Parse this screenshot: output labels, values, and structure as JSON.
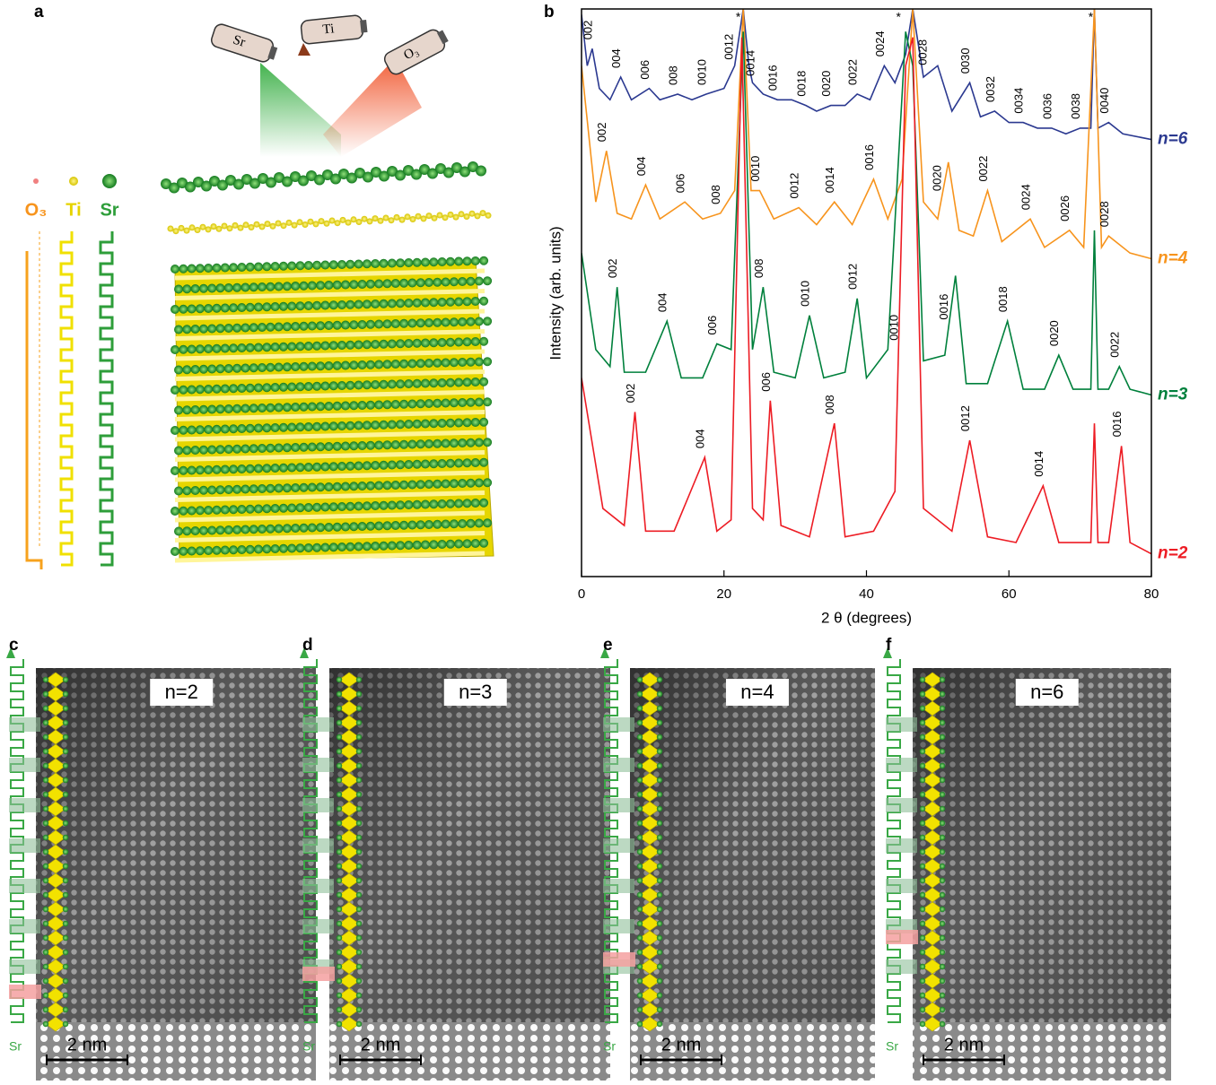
{
  "panel_a": {
    "label": "a",
    "sources": [
      "Sr",
      "Ti",
      "O₃"
    ],
    "legend": [
      "O₃",
      "Ti",
      "Sr"
    ]
  },
  "stem_panels": [
    {
      "label": "c",
      "n": "n=2",
      "scale_bar": "2 nm",
      "axis_label": "Sr"
    },
    {
      "label": "d",
      "n": "n=3",
      "scale_bar": "2 nm",
      "axis_label": "Sr"
    },
    {
      "label": "e",
      "n": "n=4",
      "scale_bar": "2 nm",
      "axis_label": "Sr"
    },
    {
      "label": "f",
      "n": "n=6",
      "scale_bar": "2 nm",
      "axis_label": "Sr"
    }
  ],
  "chart_data": {
    "type": "line",
    "panel_label": "b",
    "x_label": "2 θ (degrees)",
    "y_label": "Intensity (arb. units)",
    "xlim": [
      0,
      80
    ],
    "xticks": [
      0,
      20,
      40,
      60,
      80
    ],
    "ylim": [
      0,
      100
    ],
    "substrate_marks": [
      {
        "x": 22,
        "text": "*"
      },
      {
        "x": 44.5,
        "text": "*"
      },
      {
        "x": 71.5,
        "text": "*"
      }
    ],
    "series": [
      {
        "name": "n=6",
        "color": "#2b3990",
        "x": [
          0,
          0.8,
          1.5,
          2.5,
          4,
          5.5,
          7,
          9.5,
          11,
          13.5,
          15.5,
          17.5,
          20,
          21.5,
          22.7,
          23.5,
          24,
          25.5,
          27.5,
          29.5,
          31.5,
          33,
          35,
          37,
          38.7,
          40.5,
          42.5,
          44,
          45.5,
          46.5,
          48,
          50,
          52,
          54.5,
          56,
          58,
          60,
          62,
          64,
          66,
          68,
          70,
          71.5,
          72,
          72.5,
          74,
          76,
          80
        ],
        "values": [
          99,
          90,
          93,
          86,
          84,
          88,
          84,
          86,
          84,
          85,
          84,
          85,
          86,
          90,
          100,
          90,
          87,
          85,
          84,
          84,
          83,
          82,
          83,
          83,
          85,
          84,
          90,
          87,
          92,
          100,
          88,
          90,
          82,
          87,
          81,
          82,
          80,
          80,
          79,
          79,
          78,
          79,
          79,
          100,
          79,
          80,
          78,
          77
        ],
        "peak_labels": [
          {
            "x": 1.5,
            "text": "002"
          },
          {
            "x": 5.5,
            "text": "004"
          },
          {
            "x": 9.5,
            "text": "006"
          },
          {
            "x": 13.5,
            "text": "008"
          },
          {
            "x": 17.5,
            "text": "0010"
          },
          {
            "x": 21.3,
            "text": "0012"
          },
          {
            "x": 24.3,
            "text": "0014"
          },
          {
            "x": 27.5,
            "text": "0016"
          },
          {
            "x": 31.5,
            "text": "0018"
          },
          {
            "x": 35,
            "text": "0020"
          },
          {
            "x": 38.7,
            "text": "0022"
          },
          {
            "x": 42.5,
            "text": "0024"
          },
          {
            "x": 48.5,
            "text": "0028"
          },
          {
            "x": 54.5,
            "text": "0030"
          },
          {
            "x": 58,
            "text": "0032"
          },
          {
            "x": 62,
            "text": "0034"
          },
          {
            "x": 66,
            "text": "0036"
          },
          {
            "x": 70,
            "text": "0038"
          },
          {
            "x": 74,
            "text": "0040"
          }
        ]
      },
      {
        "name": "n=4",
        "color": "#f7941d",
        "x": [
          0,
          2,
          3.5,
          5,
          7,
          9,
          11,
          14.5,
          17,
          19.5,
          21.5,
          22.7,
          23.8,
          25,
          27,
          30.5,
          33,
          35.5,
          38,
          41,
          43,
          45,
          46.5,
          48,
          50,
          51.5,
          53,
          55,
          57,
          59,
          63,
          65,
          68.5,
          70.5,
          72,
          73,
          74,
          77,
          80
        ],
        "values": [
          90,
          66,
          75,
          64,
          63,
          69,
          63,
          66,
          63,
          64,
          68,
          100,
          68,
          68,
          63,
          65,
          62,
          66,
          62,
          70,
          63,
          70,
          100,
          66,
          63,
          73,
          61,
          60,
          68,
          59,
          63,
          58,
          61,
          58,
          100,
          58,
          60,
          57,
          56
        ],
        "peak_labels": [
          {
            "x": 3.5,
            "text": "002"
          },
          {
            "x": 9,
            "text": "004"
          },
          {
            "x": 14.5,
            "text": "006"
          },
          {
            "x": 19.5,
            "text": "008"
          },
          {
            "x": 25,
            "text": "0010"
          },
          {
            "x": 30.5,
            "text": "0012"
          },
          {
            "x": 35.5,
            "text": "0014"
          },
          {
            "x": 41,
            "text": "0016"
          },
          {
            "x": 50.5,
            "text": "0020"
          },
          {
            "x": 57,
            "text": "0022"
          },
          {
            "x": 63,
            "text": "0024"
          },
          {
            "x": 68.5,
            "text": "0026"
          },
          {
            "x": 74,
            "text": "0028"
          }
        ]
      },
      {
        "name": "n=3",
        "color": "#00803c",
        "x": [
          0,
          2,
          4,
          5,
          6,
          9,
          12,
          14,
          17,
          19,
          21,
          22.7,
          24,
          25.5,
          27,
          30,
          32,
          34,
          37,
          38.7,
          40,
          43,
          45.5,
          46.5,
          48,
          51,
          52.5,
          54,
          57,
          59.8,
          62,
          65,
          67,
          69,
          71.5,
          72,
          72.5,
          74,
          75.5,
          77,
          80
        ],
        "values": [
          57,
          40,
          37,
          51,
          36,
          36,
          45,
          35,
          35,
          41,
          40,
          96,
          40,
          51,
          36,
          35,
          46,
          35,
          36,
          49,
          35,
          40,
          96,
          90,
          38,
          39,
          53,
          34,
          34,
          45,
          33,
          33,
          39,
          33,
          33,
          61,
          33,
          33,
          37,
          33,
          32
        ],
        "peak_labels": [
          {
            "x": 5,
            "text": "002"
          },
          {
            "x": 12,
            "text": "004"
          },
          {
            "x": 19,
            "text": "006"
          },
          {
            "x": 25.5,
            "text": "008"
          },
          {
            "x": 32,
            "text": "0010"
          },
          {
            "x": 38.7,
            "text": "0012"
          },
          {
            "x": 51.5,
            "text": "0016"
          },
          {
            "x": 59.8,
            "text": "0018"
          },
          {
            "x": 67,
            "text": "0020"
          },
          {
            "x": 75.5,
            "text": "0022"
          }
        ]
      },
      {
        "name": "n=2",
        "color": "#ed1c24",
        "x": [
          0,
          3,
          6,
          7.5,
          9,
          13,
          17.3,
          19,
          21,
          22.5,
          24,
          25.5,
          26.5,
          28,
          32,
          35.5,
          37,
          41,
          44,
          45.5,
          46.5,
          48,
          52,
          54.5,
          57,
          61,
          64.8,
          67,
          71.5,
          72,
          72.5,
          74,
          75.8,
          77,
          80
        ],
        "values": [
          35,
          12,
          9,
          29,
          8,
          8,
          21,
          8,
          10,
          95,
          12,
          10,
          31,
          9,
          7,
          27,
          7,
          8,
          15,
          90,
          95,
          12,
          8,
          24,
          7,
          6,
          16,
          6,
          6,
          27,
          6,
          6,
          23,
          6,
          4
        ],
        "peak_labels": [
          {
            "x": 7.5,
            "text": "002"
          },
          {
            "x": 17.3,
            "text": "004"
          },
          {
            "x": 26.5,
            "text": "006"
          },
          {
            "x": 35.5,
            "text": "008"
          },
          {
            "x": 44.5,
            "text": "0010"
          },
          {
            "x": 54.5,
            "text": "0012"
          },
          {
            "x": 64.8,
            "text": "0014"
          },
          {
            "x": 75.8,
            "text": "0016"
          }
        ]
      }
    ]
  }
}
